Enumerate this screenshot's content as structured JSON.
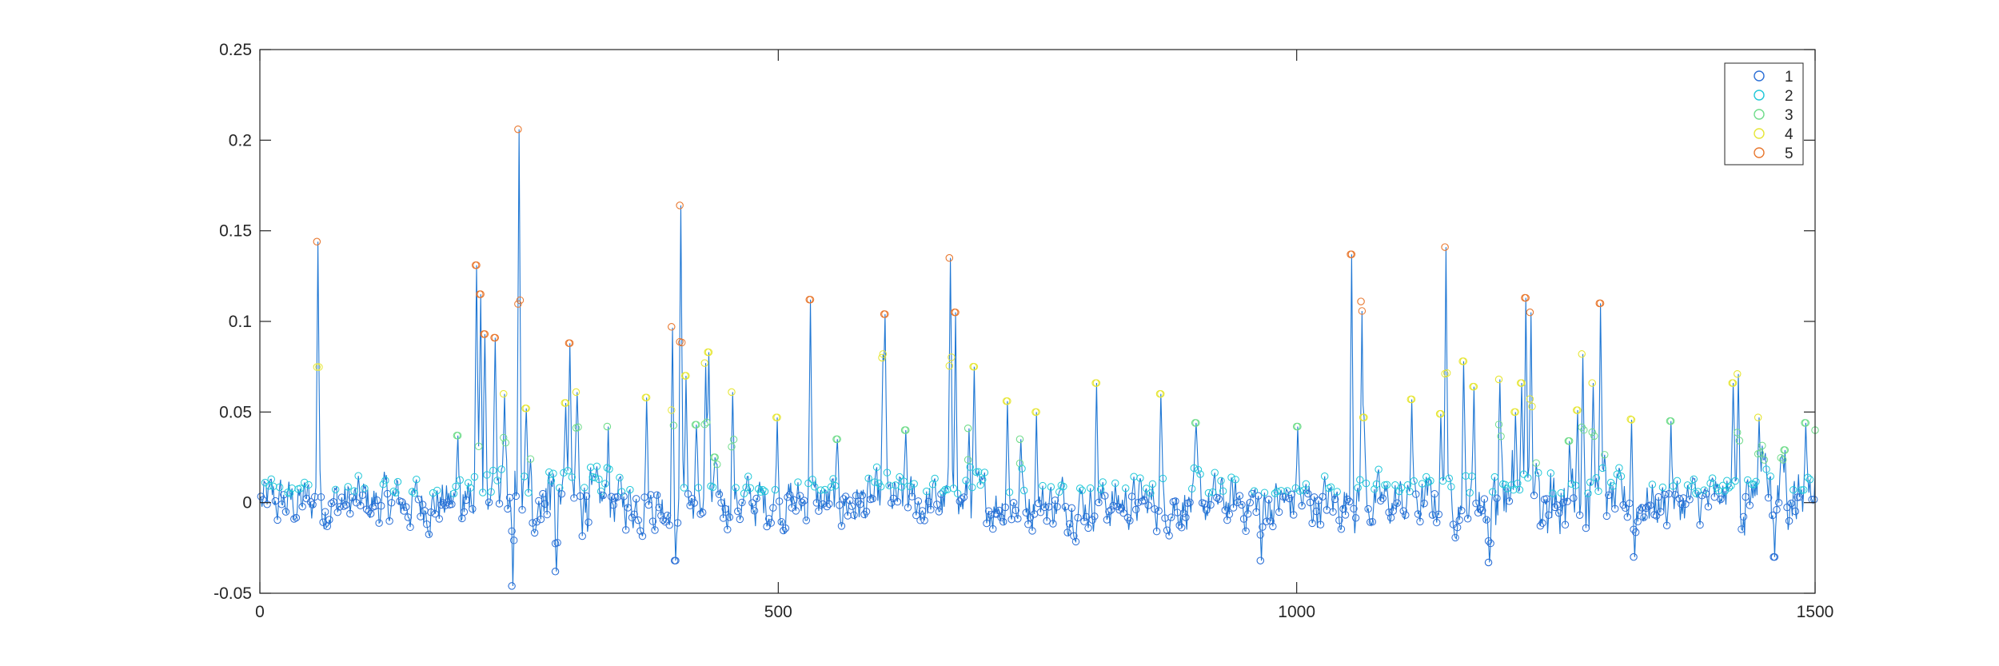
{
  "chart_data": {
    "type": "line",
    "title": "",
    "xlabel": "",
    "ylabel": "",
    "xlim": [
      0,
      1500
    ],
    "ylim": [
      -0.05,
      0.25
    ],
    "grid": false,
    "box": true,
    "legend_position": "top-right",
    "x_ticks": [
      0,
      500,
      1000,
      1500
    ],
    "x_tick_labels": [
      "0",
      "500",
      "1000",
      "1500"
    ],
    "y_ticks": [
      -0.05,
      0,
      0.05,
      0.1,
      0.15,
      0.2,
      0.25
    ],
    "y_tick_labels": [
      "-0.05",
      "0",
      "0.05",
      "0.1",
      "0.15",
      "0.2",
      "0.25"
    ],
    "line_color": "#1f77d4",
    "marker": "circle-open",
    "n_points": 1500,
    "legend": [
      {
        "label": "1",
        "color": "#2b6fd6"
      },
      {
        "label": "2",
        "color": "#1fc7d8"
      },
      {
        "label": "3",
        "color": "#6fdc8a"
      },
      {
        "label": "4",
        "color": "#e6e635"
      },
      {
        "label": "5",
        "color": "#e8772e"
      }
    ],
    "peaks": [
      {
        "x": 55,
        "y": 0.144
      },
      {
        "x": 190,
        "y": 0.037
      },
      {
        "x": 208,
        "y": 0.131
      },
      {
        "x": 212,
        "y": 0.115
      },
      {
        "x": 216,
        "y": 0.093
      },
      {
        "x": 226,
        "y": 0.091
      },
      {
        "x": 235,
        "y": 0.06
      },
      {
        "x": 243,
        "y": -0.046
      },
      {
        "x": 249,
        "y": 0.206
      },
      {
        "x": 256,
        "y": 0.052
      },
      {
        "x": 285,
        "y": -0.038
      },
      {
        "x": 294,
        "y": 0.055
      },
      {
        "x": 298,
        "y": 0.088
      },
      {
        "x": 305,
        "y": 0.061
      },
      {
        "x": 335,
        "y": 0.042
      },
      {
        "x": 372,
        "y": 0.058
      },
      {
        "x": 397,
        "y": 0.097
      },
      {
        "x": 400,
        "y": -0.032
      },
      {
        "x": 405,
        "y": 0.164
      },
      {
        "x": 410,
        "y": 0.07
      },
      {
        "x": 420,
        "y": 0.043
      },
      {
        "x": 429,
        "y": 0.077
      },
      {
        "x": 432,
        "y": 0.083
      },
      {
        "x": 438,
        "y": 0.025
      },
      {
        "x": 455,
        "y": 0.061
      },
      {
        "x": 498,
        "y": 0.047
      },
      {
        "x": 530,
        "y": 0.112
      },
      {
        "x": 556,
        "y": 0.035
      },
      {
        "x": 600,
        "y": 0.08
      },
      {
        "x": 602,
        "y": 0.104
      },
      {
        "x": 622,
        "y": 0.04
      },
      {
        "x": 665,
        "y": 0.135
      },
      {
        "x": 670,
        "y": 0.105
      },
      {
        "x": 683,
        "y": 0.041
      },
      {
        "x": 688,
        "y": 0.075
      },
      {
        "x": 720,
        "y": 0.056
      },
      {
        "x": 733,
        "y": 0.035
      },
      {
        "x": 748,
        "y": 0.05
      },
      {
        "x": 806,
        "y": 0.066
      },
      {
        "x": 868,
        "y": 0.06
      },
      {
        "x": 902,
        "y": 0.044
      },
      {
        "x": 965,
        "y": -0.032
      },
      {
        "x": 1000,
        "y": 0.042
      },
      {
        "x": 1052,
        "y": 0.137
      },
      {
        "x": 1062,
        "y": 0.111
      },
      {
        "x": 1064,
        "y": 0.047
      },
      {
        "x": 1110,
        "y": 0.057
      },
      {
        "x": 1138,
        "y": 0.049
      },
      {
        "x": 1143,
        "y": 0.141
      },
      {
        "x": 1160,
        "y": 0.078
      },
      {
        "x": 1170,
        "y": 0.064
      },
      {
        "x": 1185,
        "y": -0.033
      },
      {
        "x": 1195,
        "y": 0.068
      },
      {
        "x": 1210,
        "y": 0.05
      },
      {
        "x": 1216,
        "y": 0.066
      },
      {
        "x": 1220,
        "y": 0.113
      },
      {
        "x": 1225,
        "y": 0.105
      },
      {
        "x": 1262,
        "y": 0.034
      },
      {
        "x": 1270,
        "y": 0.051
      },
      {
        "x": 1275,
        "y": 0.082
      },
      {
        "x": 1285,
        "y": 0.066
      },
      {
        "x": 1292,
        "y": 0.11
      },
      {
        "x": 1322,
        "y": 0.046
      },
      {
        "x": 1325,
        "y": -0.03
      },
      {
        "x": 1360,
        "y": 0.045
      },
      {
        "x": 1420,
        "y": 0.066
      },
      {
        "x": 1425,
        "y": 0.071
      },
      {
        "x": 1445,
        "y": 0.047
      },
      {
        "x": 1460,
        "y": -0.03
      },
      {
        "x": 1470,
        "y": 0.029
      },
      {
        "x": 1490,
        "y": 0.044
      },
      {
        "x": 1500,
        "y": 0.04
      }
    ]
  }
}
